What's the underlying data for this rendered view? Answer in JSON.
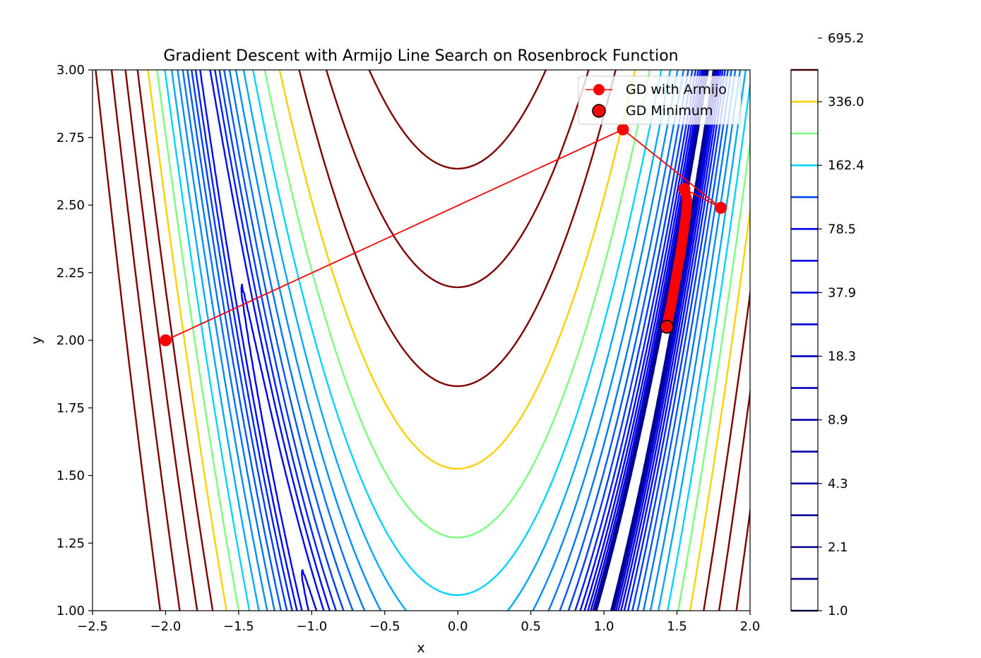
{
  "chart_data": {
    "type": "line",
    "title": "Gradient Descent with Armijo Line Search on Rosenbrock Function",
    "xlabel": "x",
    "ylabel": "y",
    "xlim": [
      -2.5,
      2.0
    ],
    "ylim": [
      1.0,
      3.0
    ],
    "grid": false,
    "legend_position": "top-right",
    "x_ticks": [
      "−2.5",
      "−2.0",
      "−1.5",
      "−1.0",
      "−0.5",
      "0.0",
      "0.5",
      "1.0",
      "1.5",
      "2.0"
    ],
    "x_tick_values": [
      -2.5,
      -2.0,
      -1.5,
      -1.0,
      -0.5,
      0.0,
      0.5,
      1.0,
      1.5,
      2.0
    ],
    "y_ticks": [
      "1.00",
      "1.25",
      "1.50",
      "1.75",
      "2.00",
      "2.25",
      "2.50",
      "2.75",
      "3.00"
    ],
    "y_tick_values": [
      1.0,
      1.25,
      1.5,
      1.75,
      2.0,
      2.25,
      2.5,
      2.75,
      3.0
    ],
    "contour": {
      "function": "rosenbrock",
      "colormap": "jet",
      "levels": [
        1.0,
        1.5,
        2.1,
        3.0,
        4.3,
        6.2,
        8.9,
        12.7,
        18.3,
        26.4,
        37.9,
        54.5,
        78.5,
        112.9,
        162.4,
        233.6,
        336.0,
        483.3,
        695.2,
        1000.0
      ],
      "colors": [
        "#000080",
        "#000099",
        "#0000b5",
        "#0000cd",
        "#0000e8",
        "#0000ff",
        "#0008ff",
        "#0020ff",
        "#003cff",
        "#0058ff",
        "#0074ff",
        "#008cff",
        "#00a8ff",
        "#00d4ff",
        "#7aff7d",
        "#ffd000",
        "#800000"
      ]
    },
    "colorbar": {
      "tick_labels": [
        "1.0",
        "2.1",
        "4.3",
        "8.9",
        "18.3",
        "37.9",
        "78.5",
        "162.4",
        "336.0",
        "695.2"
      ],
      "tick_values": [
        1.0,
        2.1,
        4.3,
        8.9,
        18.3,
        37.9,
        78.5,
        162.4,
        336.0,
        695.2
      ],
      "line_colors": [
        "#000080",
        "#000088",
        "#000091",
        "#00009a",
        "#0000a4",
        "#0000ad",
        "#0000b6",
        "#0000c0",
        "#0000c9",
        "#0000d2",
        "#0000dc",
        "#0000e5",
        "#0000ff",
        "#0046ff",
        "#00d4ff",
        "#7aff7d",
        "#ffd000",
        "#800000"
      ]
    },
    "series": [
      {
        "name": "GD with Armijo",
        "color": "#ff0000",
        "marker": "circle",
        "x": [
          -2.0,
          1.13,
          1.8,
          1.55
        ],
        "y": [
          2.0,
          2.78,
          2.49,
          2.56
        ]
      },
      {
        "name": "GD Minimum",
        "color": "#ff0000",
        "marker": "circle-outlined",
        "x": [
          1.43
        ],
        "y": [
          2.05
        ]
      }
    ],
    "path_tail": {
      "x": [
        1.55,
        1.57,
        1.56,
        1.54,
        1.52,
        1.5,
        1.48,
        1.46,
        1.44,
        1.43
      ],
      "y": [
        2.56,
        2.52,
        2.46,
        2.38,
        2.31,
        2.25,
        2.19,
        2.13,
        2.08,
        2.05
      ]
    }
  }
}
